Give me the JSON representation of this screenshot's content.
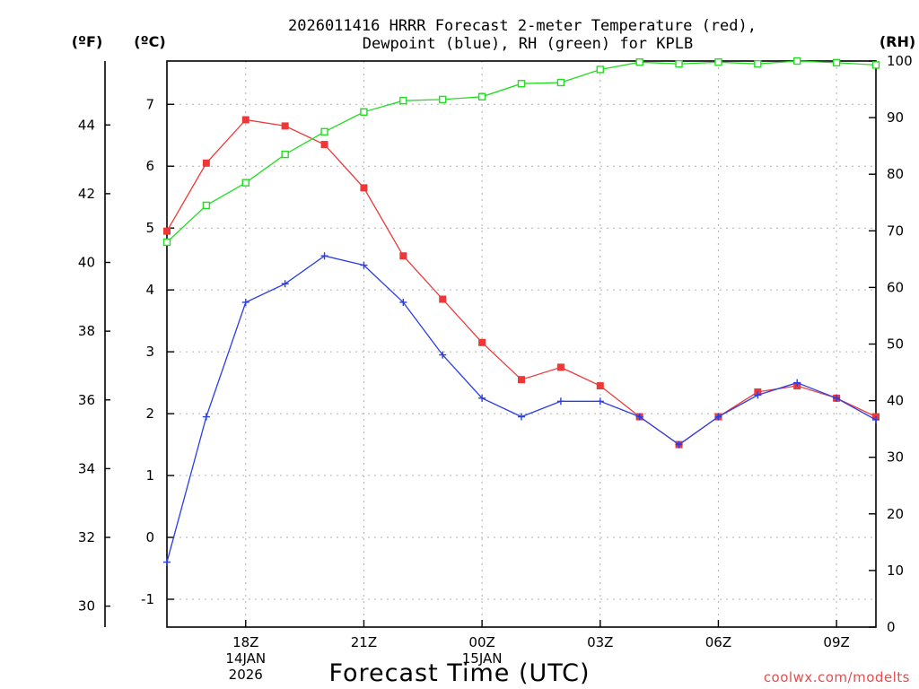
{
  "chart_data": {
    "type": "line",
    "title_line1": "2026011416 HRRR Forecast 2-meter Temperature (red),",
    "title_line2": "Dewpoint (blue), RH (green) for KPLB",
    "unit_f": "(ºF)",
    "unit_c": "(ºC)",
    "unit_rh": "(RH)",
    "xlabel": "Forecast Time (UTC)",
    "credit": "coolwx.com/modelts",
    "x_hours": [
      16,
      17,
      18,
      19,
      20,
      21,
      22,
      23,
      24,
      25,
      26,
      27,
      28,
      29,
      30,
      31,
      32,
      33,
      34
    ],
    "x_ticks": [
      {
        "hour": 18,
        "lines": [
          "18Z",
          "14JAN",
          "2026"
        ]
      },
      {
        "hour": 21,
        "lines": [
          "21Z"
        ]
      },
      {
        "hour": 24,
        "lines": [
          "00Z",
          "15JAN"
        ]
      },
      {
        "hour": 27,
        "lines": [
          "03Z"
        ]
      },
      {
        "hour": 30,
        "lines": [
          "06Z"
        ]
      },
      {
        "hour": 33,
        "lines": [
          "09Z"
        ]
      }
    ],
    "xlim": [
      16,
      34
    ],
    "ylim_c": [
      -1.45,
      7.7
    ],
    "yticks_c": [
      -1,
      0,
      1,
      2,
      3,
      4,
      5,
      6,
      7
    ],
    "yticks_f": [
      30,
      32,
      34,
      36,
      38,
      40,
      42,
      44
    ],
    "ylim_rh": [
      0,
      100
    ],
    "yticks_rh": [
      0,
      10,
      20,
      30,
      40,
      50,
      60,
      70,
      80,
      90,
      100
    ],
    "series": [
      {
        "name": "Temperature",
        "color": "#ee3838",
        "marker": "filled-square",
        "values": [
          4.95,
          6.05,
          6.75,
          6.65,
          6.35,
          5.65,
          4.55,
          3.85,
          3.15,
          2.55,
          2.75,
          2.45,
          1.95,
          1.5,
          1.95,
          2.35,
          2.45,
          2.25,
          1.95
        ]
      },
      {
        "name": "Dewpoint",
        "color": "#2a3ee6",
        "marker": "plus",
        "values": [
          -0.4,
          1.95,
          3.8,
          4.1,
          4.55,
          4.4,
          3.8,
          2.95,
          2.25,
          1.95,
          2.2,
          2.2,
          1.95,
          1.5,
          1.95,
          2.3,
          2.5,
          2.25,
          1.9
        ]
      },
      {
        "name": "RH",
        "color": "#22dd22",
        "marker": "open-square",
        "axis": "rh",
        "values": [
          68,
          74.5,
          78.5,
          83.5,
          87.5,
          91,
          93,
          93.2,
          93.7,
          96,
          96.2,
          98.5,
          99.8,
          99.5,
          99.8,
          99.5,
          100,
          99.7,
          99.3
        ]
      }
    ]
  }
}
